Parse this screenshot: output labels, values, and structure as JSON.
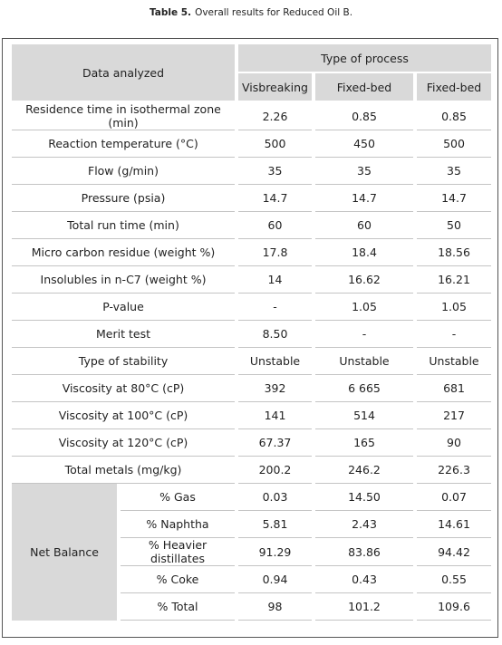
{
  "caption": {
    "label": "Table 5.",
    "text": "Overall results for Reduced Oil B."
  },
  "table": {
    "header": {
      "row_label": "Data analyzed",
      "group": "Type of process",
      "columns": [
        "Visbreaking",
        "Fixed-bed",
        "Fixed-bed"
      ]
    },
    "rows": [
      [
        "Residence time in isothermal zone (min)",
        "2.26",
        "0.85",
        "0.85"
      ],
      [
        "Reaction temperature (°C)",
        "500",
        "450",
        "500"
      ],
      [
        "Flow (g/min)",
        "35",
        "35",
        "35"
      ],
      [
        "Pressure (psia)",
        "14.7",
        "14.7",
        "14.7"
      ],
      [
        "Total run time (min)",
        "60",
        "60",
        "50"
      ],
      [
        "Micro carbon residue (weight %)",
        "17.8",
        "18.4",
        "18.56"
      ],
      [
        "Insolubles in n-C7 (weight %)",
        "14",
        "16.62",
        "16.21"
      ],
      [
        "P-value",
        "-",
        "1.05",
        "1.05"
      ],
      [
        "Merit test",
        "8.50",
        "-",
        "-"
      ],
      [
        "Type of stability",
        "Unstable",
        "Unstable",
        "Unstable"
      ],
      [
        "Viscosity at 80°C (cP)",
        "392",
        "6 665",
        "681"
      ],
      [
        "Viscosity at 100°C (cP)",
        "141",
        "514",
        "217"
      ],
      [
        "Viscosity at 120°C (cP)",
        "67.37",
        "165",
        "90"
      ],
      [
        "Total metals (mg/kg)",
        "200.2",
        "246.2",
        "226.3"
      ]
    ],
    "net_balance": {
      "label": "Net Balance",
      "rows": [
        [
          "% Gas",
          "0.03",
          "14.50",
          "0.07"
        ],
        [
          "% Naphtha",
          "5.81",
          "2.43",
          "14.61"
        ],
        [
          "% Heavier distillates",
          "91.29",
          "83.86",
          "94.42"
        ],
        [
          "% Coke",
          "0.94",
          "0.43",
          "0.55"
        ],
        [
          "% Total",
          "98",
          "101.2",
          "109.6"
        ]
      ]
    }
  }
}
